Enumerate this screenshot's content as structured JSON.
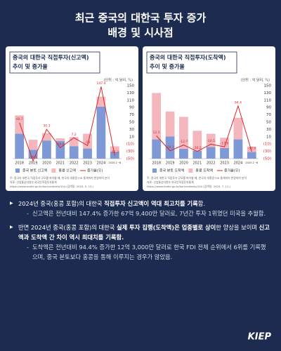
{
  "header": {
    "title": [
      "최근 중국의 대한국 투자 증가",
      "배경 및 시사점"
    ]
  },
  "logo": "KIEP",
  "chart_data": [
    {
      "type": "bar",
      "title": [
        "중국의 대한국 직접투자(신고액)",
        "추이 및 증가율"
      ],
      "unit": "(단위 : 억 달러, %)",
      "categories": [
        "2018",
        "2019",
        "2020",
        "2021",
        "2022",
        "2023",
        "2024",
        "2025.1~6"
      ],
      "series": [
        {
          "name": "중국 본토 신고액",
          "color": "#7f98d6",
          "values": [
            27.4,
            9.7,
            19.9,
            19.2,
            13.7,
            11.1,
            57.0,
            7.5
          ]
        },
        {
          "name": "홍콩 신고액",
          "color": "#f3b7bd",
          "values": [
            20.0,
            11.0,
            8.0,
            3.0,
            10.0,
            16.2,
            10.9,
            6.0
          ]
        },
        {
          "name": "증가율(우)",
          "color": "#d9262b",
          "axis": "y2",
          "values": [
            48.7,
            -56.1,
            30.3,
            -19.8,
            7.2,
            -14.0,
            147.4,
            -41.3
          ]
        }
      ],
      "ylim": [
        0,
        80
      ],
      "y2lim": [
        -50,
        150
      ],
      "y2ticks": [
        150,
        130,
        110,
        90,
        70,
        50,
        30,
        10,
        {
          "value": -10,
          "label": "(10)"
        },
        {
          "value": -30,
          "label": "(30)"
        },
        {
          "value": -50,
          "label": "(50)"
        }
      ],
      "notes": [
        "주: 중국의 대한국 직접투자 규모를 파악할 때, 한국의 대홍콩 FDI 통계까지 반영하여 분석",
        "자료: 산업통상자원부 외국인직접투자통계",
        "https://www.motie.go.kr/kor/contents/104 (검색일: 2025. 5. 13.)"
      ]
    },
    {
      "type": "bar",
      "title": [
        "중국의 대한국 직접투자(도착액)",
        "추이 및 증가율"
      ],
      "unit": "(단위 : 억 달러, %)",
      "categories": [
        "2018",
        "2019",
        "2020",
        "2021",
        "2022",
        "2023",
        "2024",
        "2025.1~6"
      ],
      "series": [
        {
          "name": "중국 본토 도착액",
          "color": "#7f98d6",
          "values": [
            5.8,
            6.7,
            3.0,
            2.4,
            3.5,
            3.2,
            5.8,
            2.0
          ]
        },
        {
          "name": "홍콩 도착액",
          "color": "#f3b7bd",
          "values": [
            14.0,
            7.5,
            9.6,
            6.0,
            4.0,
            3.1,
            6.5,
            1.6
          ]
        },
        {
          "name": "증가율(우)",
          "color": "#d9262b",
          "axis": "y2",
          "values": [
            12.5,
            -28.3,
            -12.7,
            -30.2,
            -10.5,
            -17.6,
            94.4,
            -30.9
          ]
        }
      ],
      "ylim": [
        0,
        22
      ],
      "y2lim": [
        -50,
        150
      ],
      "y2ticks": [
        150,
        130,
        110,
        90,
        70,
        50,
        30,
        10,
        {
          "value": -10,
          "label": "(10)"
        },
        {
          "value": -30,
          "label": "(30)"
        },
        {
          "value": -50,
          "label": "(50)"
        }
      ],
      "notes": [
        "주: 중국의 대한국 직접투자 규모를 파악할 때, 한국의 대홍콩 FDI 통계까지 반영하여 분석",
        "자료: 산업통상자원부 외국인직접투자통계",
        "https://www.motie.go.kr/kor/contents/104 (검색일: 2025. 7. 11.)"
      ]
    }
  ],
  "bullets": [
    {
      "parts": [
        {
          "text": "2024년 중국(홍콩 포함)의 대한국 ",
          "bold": false
        },
        {
          "text": "직접투자 신고액이 역대 최고치를 기록",
          "bold": true
        },
        {
          "text": "함.",
          "bold": false
        }
      ],
      "sub": "신고액은 전년대비 147.4% 증가한 67억 9,400만 달러로, 7년간 투자 1위였던 미국을 추월함."
    },
    {
      "parts": [
        {
          "text": "반면 2024년 중국(홍콩 포함)의 대한국 ",
          "bold": false
        },
        {
          "text": "실제 투자 집행(도착액)은 업종별로 상이",
          "bold": true
        },
        {
          "text": "한 양상을 보이며 ",
          "bold": false
        },
        {
          "text": "신고액과 도착액 간 차이 역시 최대치를 기록함.",
          "bold": true
        }
      ],
      "sub": "도착액은 전년대비 94.4% 증가한 12억 3,000만 달러로 한국 FDI 전체 순위에서 6위를 기록했으며, 중국 본토보다 홍콩을 통해 이루지는 경우가 많았음."
    }
  ]
}
